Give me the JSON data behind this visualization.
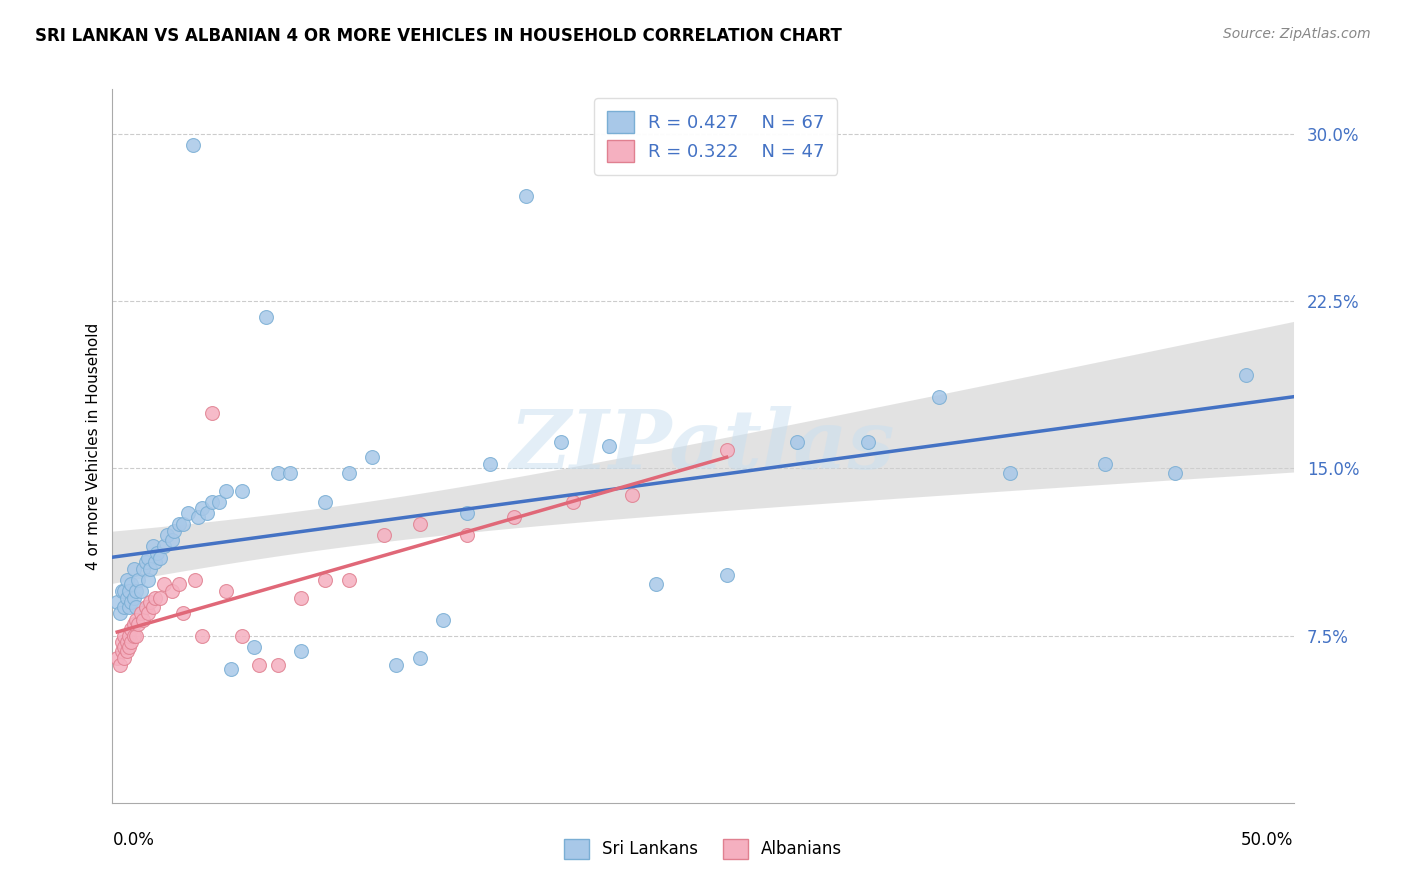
{
  "title": "SRI LANKAN VS ALBANIAN 4 OR MORE VEHICLES IN HOUSEHOLD CORRELATION CHART",
  "source": "Source: ZipAtlas.com",
  "ylabel": "4 or more Vehicles in Household",
  "xlim": [
    0.0,
    0.5
  ],
  "ylim": [
    0.0,
    0.32
  ],
  "sri_lankans_color": "#a8c8e8",
  "sri_lankans_edge": "#7aaed4",
  "albanians_color": "#f5b0c0",
  "albanians_edge": "#e08090",
  "regression_sri_color": "#4472c4",
  "regression_alb_color": "#e06878",
  "regression_conf_color": "#d0d0d0",
  "sri_R": 0.427,
  "sri_N": 67,
  "alb_R": 0.322,
  "alb_N": 47,
  "sri_lankans_x": [
    0.002,
    0.003,
    0.004,
    0.005,
    0.005,
    0.006,
    0.006,
    0.007,
    0.007,
    0.008,
    0.008,
    0.009,
    0.009,
    0.01,
    0.01,
    0.011,
    0.012,
    0.013,
    0.014,
    0.015,
    0.015,
    0.016,
    0.017,
    0.018,
    0.019,
    0.02,
    0.022,
    0.023,
    0.025,
    0.026,
    0.028,
    0.03,
    0.032,
    0.034,
    0.036,
    0.038,
    0.04,
    0.042,
    0.045,
    0.048,
    0.05,
    0.055,
    0.06,
    0.065,
    0.07,
    0.075,
    0.08,
    0.09,
    0.1,
    0.11,
    0.12,
    0.13,
    0.14,
    0.15,
    0.16,
    0.175,
    0.19,
    0.21,
    0.23,
    0.26,
    0.29,
    0.32,
    0.35,
    0.38,
    0.42,
    0.45,
    0.48
  ],
  "sri_lankans_y": [
    0.09,
    0.085,
    0.095,
    0.088,
    0.095,
    0.092,
    0.1,
    0.088,
    0.095,
    0.09,
    0.098,
    0.092,
    0.105,
    0.088,
    0.095,
    0.1,
    0.095,
    0.105,
    0.108,
    0.1,
    0.11,
    0.105,
    0.115,
    0.108,
    0.112,
    0.11,
    0.115,
    0.12,
    0.118,
    0.122,
    0.125,
    0.125,
    0.13,
    0.295,
    0.128,
    0.132,
    0.13,
    0.135,
    0.135,
    0.14,
    0.06,
    0.14,
    0.07,
    0.218,
    0.148,
    0.148,
    0.068,
    0.135,
    0.148,
    0.155,
    0.062,
    0.065,
    0.082,
    0.13,
    0.152,
    0.272,
    0.162,
    0.16,
    0.098,
    0.102,
    0.162,
    0.162,
    0.182,
    0.148,
    0.152,
    0.148,
    0.192
  ],
  "albanians_x": [
    0.002,
    0.003,
    0.004,
    0.004,
    0.005,
    0.005,
    0.005,
    0.006,
    0.006,
    0.007,
    0.007,
    0.008,
    0.008,
    0.009,
    0.009,
    0.01,
    0.01,
    0.011,
    0.012,
    0.013,
    0.014,
    0.015,
    0.016,
    0.017,
    0.018,
    0.02,
    0.022,
    0.025,
    0.028,
    0.03,
    0.035,
    0.038,
    0.042,
    0.048,
    0.055,
    0.062,
    0.07,
    0.08,
    0.09,
    0.1,
    0.115,
    0.13,
    0.15,
    0.17,
    0.195,
    0.22,
    0.26
  ],
  "albanians_y": [
    0.065,
    0.062,
    0.068,
    0.072,
    0.065,
    0.07,
    0.075,
    0.068,
    0.072,
    0.07,
    0.075,
    0.072,
    0.078,
    0.075,
    0.08,
    0.075,
    0.082,
    0.08,
    0.085,
    0.082,
    0.088,
    0.085,
    0.09,
    0.088,
    0.092,
    0.092,
    0.098,
    0.095,
    0.098,
    0.085,
    0.1,
    0.075,
    0.175,
    0.095,
    0.075,
    0.062,
    0.062,
    0.092,
    0.1,
    0.1,
    0.12,
    0.125,
    0.12,
    0.128,
    0.135,
    0.138,
    0.158
  ],
  "watermark_text": "ZIPatlas",
  "background_color": "#ffffff",
  "grid_color": "#cccccc",
  "ytick_vals": [
    0.075,
    0.15,
    0.225,
    0.3
  ],
  "ytick_labels": [
    "7.5%",
    "15.0%",
    "22.5%",
    "30.0%"
  ]
}
